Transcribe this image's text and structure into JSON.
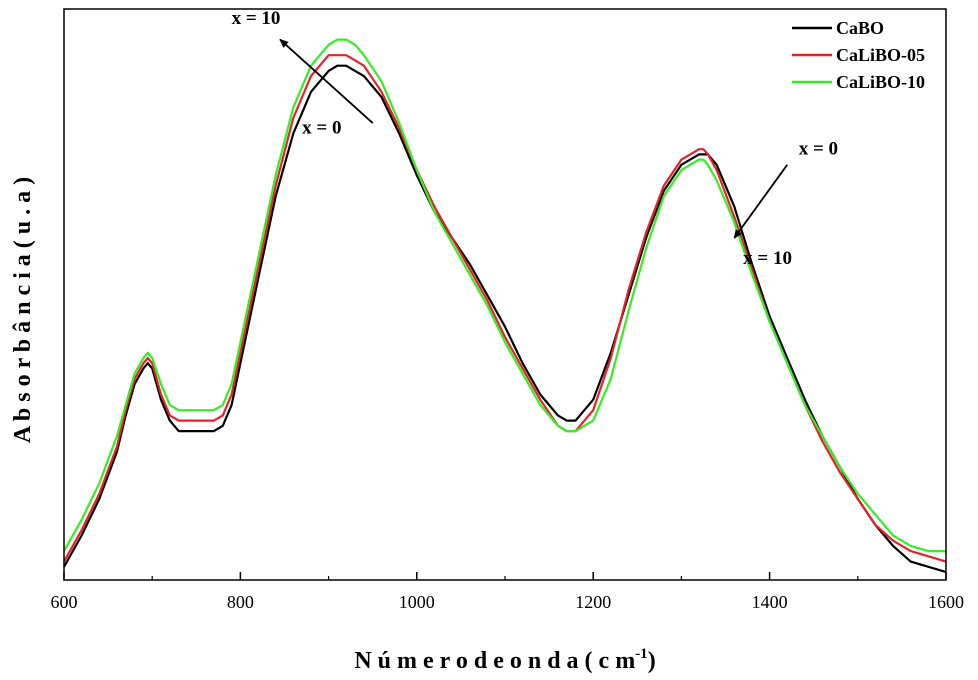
{
  "chart_data": {
    "type": "line",
    "title": "",
    "xlabel": "N ú m e r o d e o n d a ( c m",
    "xlabel_sup": "-1",
    "xlabel_close": ")",
    "ylabel": "A b s o r b â n c i a ( u . a )",
    "xlim": [
      600,
      1600
    ],
    "ylim": [
      0,
      1
    ],
    "xticks": [
      600,
      800,
      1000,
      1200,
      1400,
      1600
    ],
    "y_tick_labels_shown": false,
    "grid": false,
    "legend_position": "top-right",
    "x": [
      600,
      620,
      640,
      660,
      670,
      680,
      690,
      695,
      700,
      710,
      720,
      730,
      740,
      750,
      760,
      770,
      780,
      790,
      800,
      820,
      840,
      860,
      880,
      900,
      910,
      920,
      930,
      940,
      960,
      980,
      1000,
      1020,
      1040,
      1060,
      1080,
      1100,
      1120,
      1140,
      1160,
      1170,
      1180,
      1200,
      1220,
      1240,
      1260,
      1280,
      1300,
      1310,
      1320,
      1325,
      1330,
      1340,
      1360,
      1380,
      1400,
      1420,
      1440,
      1460,
      1480,
      1500,
      1520,
      1540,
      1560,
      1580,
      1600
    ],
    "series": [
      {
        "name": "CaBO",
        "color": "#000000",
        "values": [
          0.01,
          0.07,
          0.14,
          0.23,
          0.3,
          0.36,
          0.39,
          0.4,
          0.39,
          0.33,
          0.29,
          0.27,
          0.27,
          0.27,
          0.27,
          0.27,
          0.28,
          0.32,
          0.4,
          0.56,
          0.72,
          0.84,
          0.92,
          0.96,
          0.97,
          0.97,
          0.96,
          0.95,
          0.91,
          0.84,
          0.76,
          0.69,
          0.64,
          0.59,
          0.53,
          0.47,
          0.4,
          0.34,
          0.3,
          0.29,
          0.29,
          0.33,
          0.42,
          0.53,
          0.64,
          0.73,
          0.78,
          0.79,
          0.8,
          0.8,
          0.8,
          0.78,
          0.7,
          0.59,
          0.49,
          0.41,
          0.33,
          0.26,
          0.2,
          0.14,
          0.09,
          0.05,
          0.02,
          0.01,
          0.0
        ]
      },
      {
        "name": "CaLiBO-05",
        "color": "#e8202a",
        "values": [
          0.02,
          0.08,
          0.15,
          0.24,
          0.31,
          0.37,
          0.4,
          0.41,
          0.4,
          0.34,
          0.3,
          0.29,
          0.29,
          0.29,
          0.29,
          0.29,
          0.3,
          0.34,
          0.42,
          0.58,
          0.74,
          0.87,
          0.95,
          0.99,
          0.99,
          0.99,
          0.98,
          0.97,
          0.92,
          0.85,
          0.77,
          0.7,
          0.64,
          0.58,
          0.52,
          0.45,
          0.39,
          0.33,
          0.28,
          0.27,
          0.27,
          0.31,
          0.41,
          0.54,
          0.65,
          0.74,
          0.79,
          0.8,
          0.81,
          0.81,
          0.8,
          0.77,
          0.68,
          0.58,
          0.48,
          0.4,
          0.32,
          0.25,
          0.19,
          0.14,
          0.09,
          0.06,
          0.04,
          0.03,
          0.02
        ]
      },
      {
        "name": "CaLiBO-10",
        "color": "#33ee22",
        "values": [
          0.04,
          0.1,
          0.17,
          0.26,
          0.32,
          0.38,
          0.41,
          0.42,
          0.41,
          0.36,
          0.32,
          0.31,
          0.31,
          0.31,
          0.31,
          0.31,
          0.32,
          0.36,
          0.44,
          0.6,
          0.76,
          0.89,
          0.97,
          1.01,
          1.02,
          1.02,
          1.01,
          0.99,
          0.94,
          0.86,
          0.77,
          0.69,
          0.63,
          0.57,
          0.51,
          0.44,
          0.38,
          0.32,
          0.28,
          0.27,
          0.27,
          0.29,
          0.37,
          0.5,
          0.62,
          0.72,
          0.77,
          0.78,
          0.79,
          0.79,
          0.78,
          0.75,
          0.67,
          0.57,
          0.48,
          0.4,
          0.32,
          0.26,
          0.2,
          0.15,
          0.11,
          0.07,
          0.05,
          0.04,
          0.04
        ]
      }
    ],
    "annotations": [
      {
        "text": "x = 10",
        "from": [
          950,
          0.86
        ],
        "to": [
          845,
          1.02
        ],
        "label_at": [
          790,
          1.05
        ]
      },
      {
        "text": "x = 0",
        "from": [
          950,
          0.86
        ],
        "to": [
          845,
          1.02
        ],
        "label_at": [
          870,
          0.84
        ]
      },
      {
        "text": "x = 0",
        "from": [
          1420,
          0.78
        ],
        "to": [
          1360,
          0.64
        ],
        "label_at": [
          1433,
          0.8
        ]
      },
      {
        "text": "x = 10",
        "from": [
          1420,
          0.78
        ],
        "to": [
          1360,
          0.64
        ],
        "label_at": [
          1370,
          0.59
        ]
      }
    ]
  }
}
